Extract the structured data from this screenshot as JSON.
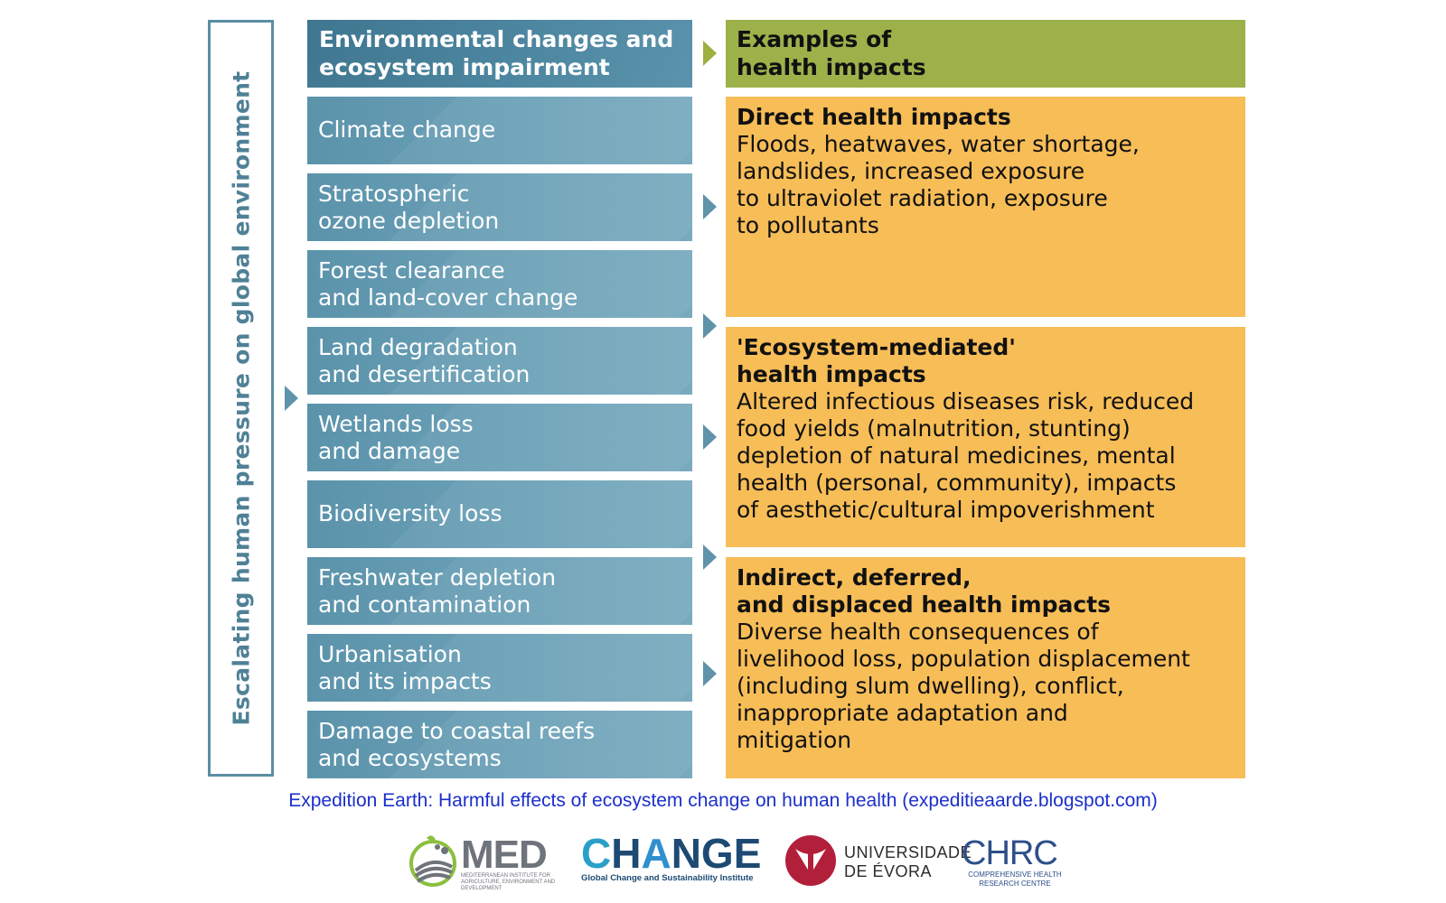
{
  "side": {
    "label": "Escalating human pressure on global environment"
  },
  "environment": {
    "header": [
      "Environmental changes and",
      "ecosystem impairment"
    ],
    "items": [
      [
        "Climate change"
      ],
      [
        "Stratospheric",
        "ozone depletion"
      ],
      [
        "Forest clearance",
        "and land-cover change"
      ],
      [
        "Land degradation",
        "and desertification"
      ],
      [
        "Wetlands loss",
        "and damage"
      ],
      [
        "Biodiversity loss"
      ],
      [
        "Freshwater depletion",
        "and contamination"
      ],
      [
        "Urbanisation",
        "and its impacts"
      ],
      [
        "Damage to coastal reefs",
        "and ecosystems"
      ]
    ]
  },
  "health": {
    "header": [
      "Examples of",
      "health impacts"
    ],
    "direct": {
      "title": [
        "Direct health impacts"
      ],
      "body": [
        "Floods, heatwaves, water shortage,",
        "landslides, increased exposure",
        "to ultraviolet radiation, exposure",
        "to pollutants"
      ]
    },
    "ecosystem": {
      "title": [
        "'Ecosystem-mediated'",
        "health impacts"
      ],
      "body": [
        "Altered infectious diseases risk, reduced",
        "food yields (malnutrition, stunting)",
        "depletion of natural medicines, mental",
        "health (personal, community), impacts",
        "of aesthetic/cultural impoverishment"
      ]
    },
    "indirect": {
      "title": [
        "Indirect, deferred,",
        "and displaced health impacts"
      ],
      "body": [
        "Diverse health consequences of",
        "livelihood loss, population displacement",
        "(including slum dwelling), conflict,",
        "inappropriate adaptation and",
        "mitigation"
      ]
    }
  },
  "caption": "Expedition Earth: Harmful effects of ecosystem change on human health (expeditieaarde.blogspot.com)",
  "logos": {
    "med": {
      "name": "MED",
      "subtitle": "MEDITERRANEAN INSTITUTE FOR AGRICULTURE, ENVIRONMENT AND DEVELOPMENT"
    },
    "change": {
      "c": "C",
      "h": "H",
      "a": "A",
      "nge": "NGE",
      "subtitle": "Global Change and Sustainability Institute"
    },
    "uevora": {
      "line1": "UNIVERSIDADE",
      "line2": "DE ÉVORA"
    },
    "chrc": {
      "name": "CHRC",
      "subtitle1": "COMPREHENSIVE HEALTH",
      "subtitle2": "RESEARCH CENTRE"
    }
  },
  "colors": {
    "env_blue": "#5b93ab",
    "env_header": "#3f7690",
    "health_header": "#9db14b",
    "health_box": "#f7bd57",
    "caption": "#1b2fc9"
  }
}
